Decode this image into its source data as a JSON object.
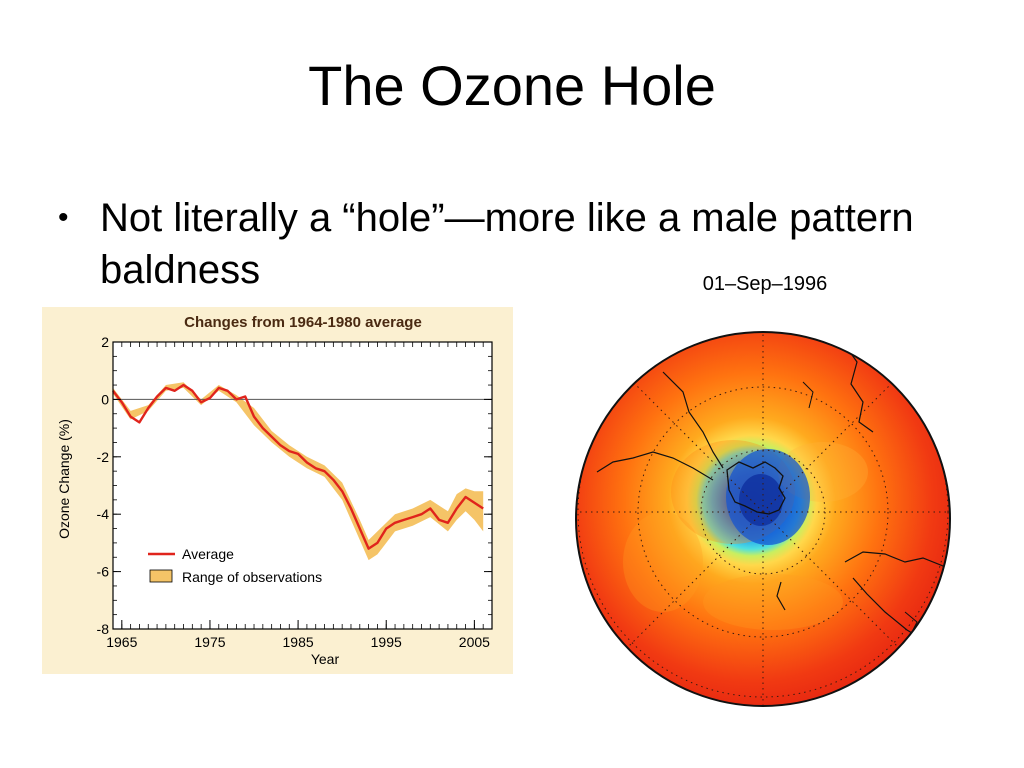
{
  "slide": {
    "title": "The Ozone Hole",
    "bullet_symbol": "•",
    "bullet_text": "Not literally a “hole”—more like a male pattern baldness"
  },
  "map": {
    "date_label": "01–Sep–1996"
  },
  "chart_data": {
    "type": "line",
    "title": "Changes from 1964-1980 average",
    "xlabel": "Year",
    "ylabel": "Ozone Change (%)",
    "xlim": [
      1964,
      2007
    ],
    "ylim": [
      -8,
      2
    ],
    "xticks": [
      1965,
      1975,
      1985,
      1995,
      2005
    ],
    "yticks": [
      2,
      0,
      -2,
      -4,
      -6,
      -8
    ],
    "grid": false,
    "legend_position": "lower-left",
    "series": [
      {
        "name": "Average",
        "color": "#e0241c",
        "x": [
          1964,
          1965,
          1966,
          1967,
          1968,
          1969,
          1970,
          1971,
          1972,
          1973,
          1974,
          1975,
          1976,
          1977,
          1978,
          1979,
          1980,
          1981,
          1982,
          1983,
          1984,
          1985,
          1986,
          1987,
          1988,
          1989,
          1990,
          1991,
          1992,
          1993,
          1994,
          1995,
          1996,
          1997,
          1998,
          1999,
          2000,
          2001,
          2002,
          2003,
          2004,
          2005,
          2006
        ],
        "y": [
          0.3,
          -0.1,
          -0.6,
          -0.8,
          -0.3,
          0.1,
          0.4,
          0.3,
          0.5,
          0.3,
          -0.1,
          0.05,
          0.4,
          0.3,
          0.0,
          0.1,
          -0.6,
          -1.0,
          -1.3,
          -1.6,
          -1.8,
          -1.9,
          -2.2,
          -2.4,
          -2.5,
          -2.8,
          -3.2,
          -3.8,
          -4.5,
          -5.2,
          -5.0,
          -4.5,
          -4.3,
          -4.2,
          -4.1,
          -4.0,
          -3.8,
          -4.2,
          -4.3,
          -3.8,
          -3.4,
          -3.6,
          -3.8
        ]
      },
      {
        "name": "Range of observations",
        "color": "#f5c467",
        "x": [
          1964,
          1966,
          1968,
          1970,
          1972,
          1974,
          1976,
          1978,
          1980,
          1982,
          1984,
          1986,
          1988,
          1990,
          1992,
          1993,
          1994,
          1996,
          1998,
          2000,
          2002,
          2003,
          2004,
          2005,
          2006
        ],
        "upper": [
          0.4,
          -0.4,
          -0.2,
          0.5,
          0.6,
          0.0,
          0.5,
          0.15,
          -0.3,
          -1.1,
          -1.6,
          -2.0,
          -2.3,
          -2.9,
          -4.2,
          -4.9,
          -4.6,
          -4.0,
          -3.8,
          -3.5,
          -3.9,
          -3.3,
          -3.1,
          -3.2,
          -3.2
        ],
        "lower": [
          0.2,
          -0.7,
          -0.4,
          0.3,
          0.4,
          -0.2,
          0.3,
          -0.1,
          -0.9,
          -1.5,
          -2.0,
          -2.4,
          -2.7,
          -3.5,
          -4.9,
          -5.6,
          -5.4,
          -4.6,
          -4.4,
          -4.1,
          -4.6,
          -4.2,
          -3.9,
          -4.2,
          -4.6
        ]
      }
    ]
  }
}
